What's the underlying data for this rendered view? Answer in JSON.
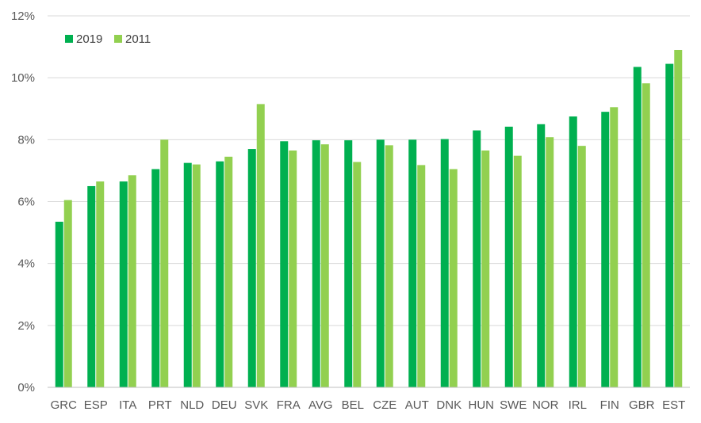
{
  "chart_data": {
    "type": "bar",
    "title": "",
    "xlabel": "",
    "ylabel": "",
    "ylim": [
      0,
      12
    ],
    "y_ticks": [
      "0%",
      "2%",
      "4%",
      "6%",
      "8%",
      "10%",
      "12%"
    ],
    "y_tick_values": [
      0,
      2,
      4,
      6,
      8,
      10,
      12
    ],
    "grid": true,
    "legend_position": "top-left",
    "categories": [
      "GRC",
      "ESP",
      "ITA",
      "PRT",
      "NLD",
      "DEU",
      "SVK",
      "FRA",
      "AVG",
      "BEL",
      "CZE",
      "AUT",
      "DNK",
      "HUN",
      "SWE",
      "NOR",
      "IRL",
      "FIN",
      "GBR",
      "EST"
    ],
    "series": [
      {
        "name": "2019",
        "color": "#00b050",
        "values": [
          5.35,
          6.5,
          6.65,
          7.05,
          7.25,
          7.3,
          7.7,
          7.95,
          7.98,
          7.98,
          8.0,
          8.0,
          8.02,
          8.3,
          8.42,
          8.5,
          8.75,
          8.9,
          10.35,
          10.45
        ]
      },
      {
        "name": "2011",
        "color": "#92d050",
        "values": [
          6.05,
          6.65,
          6.85,
          8.0,
          7.2,
          7.45,
          9.15,
          7.65,
          7.85,
          7.28,
          7.82,
          7.18,
          7.05,
          7.65,
          7.48,
          8.08,
          7.8,
          9.05,
          9.82,
          10.9
        ]
      }
    ]
  }
}
